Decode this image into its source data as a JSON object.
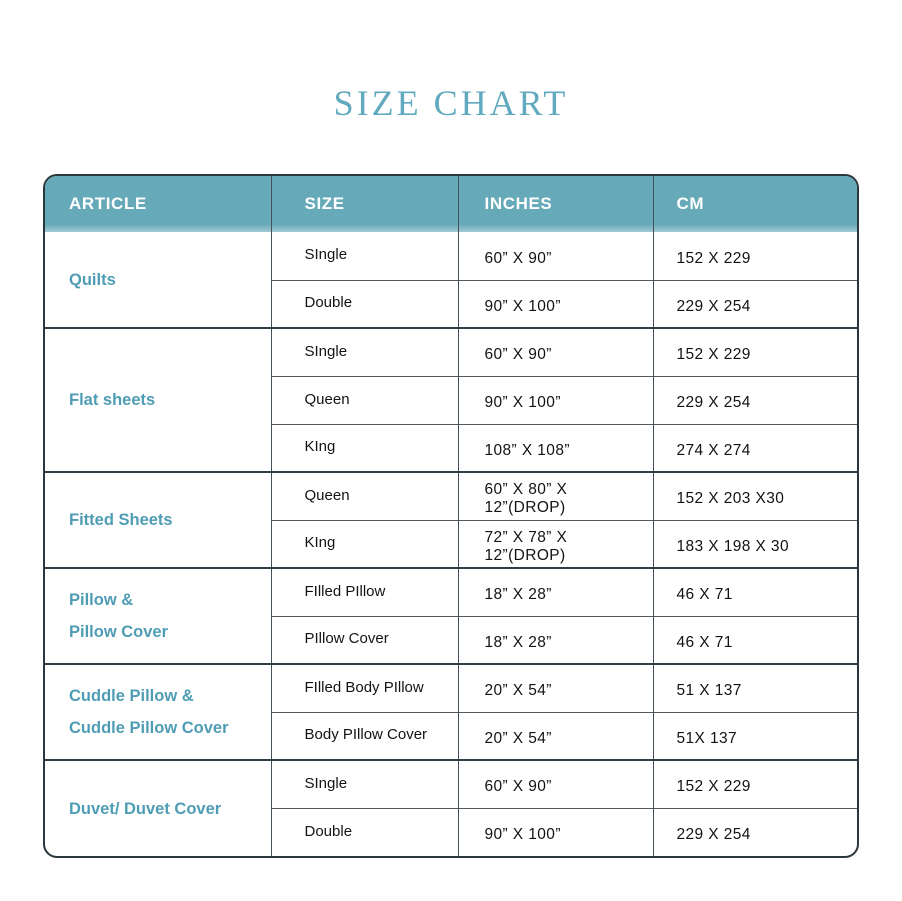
{
  "page_title": "SIZE CHART",
  "colors": {
    "title_text": "#61A9BE",
    "header_bg": "#66A9B9",
    "header_text": "#FFFFFF",
    "article_text": "#4F9DB5",
    "cell_text": "#131313",
    "border_outer": "#2A373C",
    "border_inner": "#4E585E"
  },
  "table": {
    "headers": [
      "ARTICLE",
      "SIZE",
      "INCHES",
      "CM"
    ],
    "groups": [
      {
        "article_lines": [
          "Quilts"
        ],
        "rows": [
          {
            "size": "SIngle",
            "inches": "60” X 90”",
            "cm": "152 X 229"
          },
          {
            "size": "Double",
            "inches": "90” X 100”",
            "cm": "229 X 254"
          }
        ]
      },
      {
        "article_lines": [
          "Flat sheets"
        ],
        "rows": [
          {
            "size": "SIngle",
            "inches": "60” X 90”",
            "cm": "152 X 229"
          },
          {
            "size": "Queen",
            "inches": "90” X 100”",
            "cm": "229 X 254"
          },
          {
            "size": "KIng",
            "inches": "108” X 108”",
            "cm": "274 X 274"
          }
        ]
      },
      {
        "article_lines": [
          "Fitted Sheets"
        ],
        "rows": [
          {
            "size": "Queen",
            "inches": "60” X 80” X 12”(DROP)",
            "cm": "152 X 203 X30"
          },
          {
            "size": "KIng",
            "inches": "72” X 78” X 12”(DROP)",
            "cm": "183 X 198 X 30"
          }
        ]
      },
      {
        "article_lines": [
          "Pillow &",
          "Pillow Cover"
        ],
        "rows": [
          {
            "size": "FIlled PIllow",
            "inches": "18” X 28”",
            "cm": "46 X 71"
          },
          {
            "size": "PIllow Cover",
            "inches": "18” X 28”",
            "cm": "46 X 71"
          }
        ]
      },
      {
        "article_lines": [
          "Cuddle Pillow &",
          "Cuddle Pillow Cover"
        ],
        "rows": [
          {
            "size": "FIlled Body PIllow",
            "inches": "20” X 54”",
            "cm": "51 X 137"
          },
          {
            "size": "Body PIllow Cover",
            "inches": "20” X 54”",
            "cm": "51X 137"
          }
        ]
      },
      {
        "article_lines": [
          "Duvet/ Duvet Cover"
        ],
        "rows": [
          {
            "size": "SIngle",
            "inches": "60” X 90”",
            "cm": "152 X 229"
          },
          {
            "size": "Double",
            "inches": "90” X 100”",
            "cm": "229 X 254"
          }
        ]
      }
    ]
  }
}
